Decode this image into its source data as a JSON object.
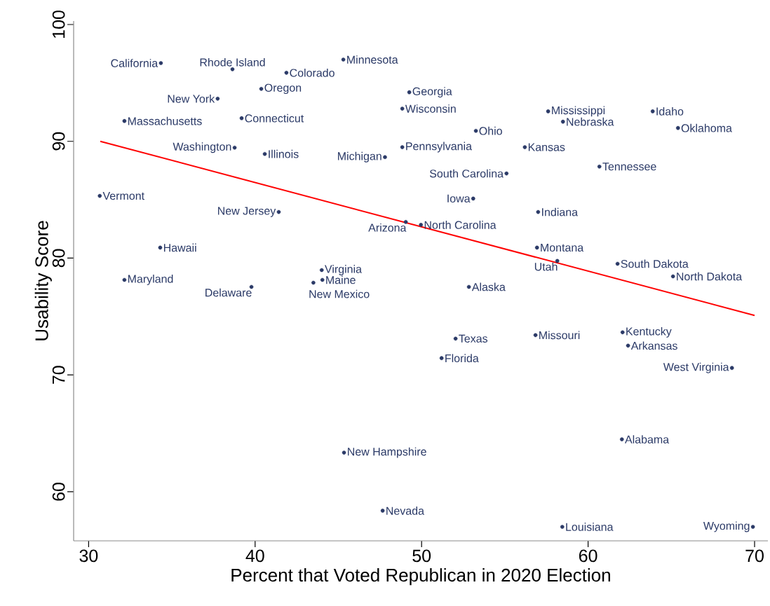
{
  "chart_data": {
    "type": "scatter",
    "xlabel": "Percent that Voted Republican in 2020 Election",
    "ylabel": "Usability Score",
    "xlim": [
      29.1,
      70.8
    ],
    "ylim": [
      55.8,
      100.3
    ],
    "xticks": [
      30,
      40,
      50,
      60,
      70
    ],
    "yticks": [
      60,
      70,
      80,
      90,
      100
    ],
    "grid": false,
    "marker": "circle",
    "series": [
      {
        "color": "#2b3a67",
        "x": [
          34.34,
          38.64,
          41.88,
          40.37,
          37.75,
          32.15,
          39.19,
          38.77,
          40.58,
          30.67,
          41.42,
          34.3,
          32.15,
          39.78,
          45.3,
          49.26,
          48.84,
          53.26,
          48.84,
          56.2,
          47.8,
          55.1,
          53.1,
          49.05,
          49.96,
          44.0,
          44.04,
          43.5,
          52.84,
          57.6,
          63.88,
          58.49,
          65.4,
          60.68,
          57.0,
          56.93,
          58.15,
          61.77,
          65.1,
          56.84,
          62.07,
          62.4,
          68.64,
          62.03,
          58.45,
          69.9,
          52.04,
          51.2,
          45.34,
          47.66
        ],
        "values": [
          96.7,
          96.17,
          95.87,
          94.49,
          93.65,
          91.74,
          91.98,
          89.46,
          88.92,
          85.33,
          83.95,
          80.9,
          78.14,
          77.54,
          97.0,
          94.2,
          92.8,
          90.9,
          89.5,
          89.5,
          88.65,
          87.25,
          85.1,
          83.1,
          82.85,
          78.98,
          78.14,
          77.9,
          77.54,
          92.57,
          92.57,
          91.68,
          91.14,
          87.84,
          83.95,
          80.9,
          79.76,
          79.52,
          78.44,
          73.41,
          73.65,
          72.51,
          70.6,
          64.49,
          57.0,
          57.0,
          73.11,
          71.44,
          63.35,
          58.38
        ]
      },
      {
        "type": "line",
        "color": "#ff0000",
        "line_style": "solid",
        "marker": "none",
        "x": [
          30.7,
          70.0
        ],
        "values": [
          90.0,
          75.1
        ]
      }
    ],
    "annotations": [
      {
        "text": "California",
        "x": 34.34,
        "y": 96.7
      },
      {
        "text": "Rhode Island",
        "x": 38.64,
        "y": 96.17
      },
      {
        "text": "Colorado",
        "x": 41.88,
        "y": 95.87
      },
      {
        "text": "Oregon",
        "x": 40.37,
        "y": 94.49
      },
      {
        "text": "New York",
        "x": 37.75,
        "y": 93.65
      },
      {
        "text": "Massachusetts",
        "x": 32.15,
        "y": 91.74
      },
      {
        "text": "Connecticut",
        "x": 39.19,
        "y": 91.98
      },
      {
        "text": "Washington",
        "x": 38.77,
        "y": 89.46
      },
      {
        "text": "Illinois",
        "x": 40.58,
        "y": 88.92
      },
      {
        "text": "Vermont",
        "x": 30.67,
        "y": 85.33
      },
      {
        "text": "New Jersey",
        "x": 41.42,
        "y": 83.95
      },
      {
        "text": "Hawaii",
        "x": 34.3,
        "y": 80.9
      },
      {
        "text": "Maryland",
        "x": 32.15,
        "y": 78.14
      },
      {
        "text": "Delaware",
        "x": 39.78,
        "y": 77.54
      },
      {
        "text": "Minnesota",
        "x": 45.3,
        "y": 97.0
      },
      {
        "text": "Georgia",
        "x": 49.26,
        "y": 94.2
      },
      {
        "text": "Wisconsin",
        "x": 48.84,
        "y": 92.8
      },
      {
        "text": "Ohio",
        "x": 53.26,
        "y": 90.9
      },
      {
        "text": "Pennsylvania",
        "x": 48.84,
        "y": 89.5
      },
      {
        "text": "Kansas",
        "x": 56.2,
        "y": 89.5
      },
      {
        "text": "Michigan",
        "x": 47.8,
        "y": 88.65
      },
      {
        "text": "South Carolina",
        "x": 55.1,
        "y": 87.25
      },
      {
        "text": "Iowa",
        "x": 53.1,
        "y": 85.1
      },
      {
        "text": "Arizona",
        "x": 49.05,
        "y": 83.1
      },
      {
        "text": "North Carolina",
        "x": 49.96,
        "y": 82.85
      },
      {
        "text": "Virginia",
        "x": 44.0,
        "y": 78.98
      },
      {
        "text": "Maine",
        "x": 44.04,
        "y": 78.14
      },
      {
        "text": "New Mexico",
        "x": 43.5,
        "y": 77.9
      },
      {
        "text": "Alaska",
        "x": 52.84,
        "y": 77.54
      },
      {
        "text": "Mississippi",
        "x": 57.6,
        "y": 92.57
      },
      {
        "text": "Idaho",
        "x": 63.88,
        "y": 92.57
      },
      {
        "text": "Nebraska",
        "x": 58.49,
        "y": 91.68
      },
      {
        "text": "Oklahoma",
        "x": 65.4,
        "y": 91.14
      },
      {
        "text": "Tennessee",
        "x": 60.68,
        "y": 87.84
      },
      {
        "text": "Indiana",
        "x": 57.0,
        "y": 83.95
      },
      {
        "text": "Montana",
        "x": 56.93,
        "y": 80.9
      },
      {
        "text": "Utah",
        "x": 58.15,
        "y": 79.76
      },
      {
        "text": "South Dakota",
        "x": 61.77,
        "y": 79.52
      },
      {
        "text": "North Dakota",
        "x": 65.1,
        "y": 78.44
      },
      {
        "text": "Missouri",
        "x": 56.84,
        "y": 73.41
      },
      {
        "text": "Kentucky",
        "x": 62.07,
        "y": 73.65
      },
      {
        "text": "Arkansas",
        "x": 62.4,
        "y": 72.51
      },
      {
        "text": "West Virginia",
        "x": 68.64,
        "y": 70.6
      },
      {
        "text": "Alabama",
        "x": 62.03,
        "y": 64.49
      },
      {
        "text": "Louisiana",
        "x": 58.45,
        "y": 57.0
      },
      {
        "text": "Wyoming",
        "x": 69.9,
        "y": 57.0
      },
      {
        "text": "Texas",
        "x": 52.04,
        "y": 73.11
      },
      {
        "text": "Florida",
        "x": 51.2,
        "y": 71.44
      },
      {
        "text": "New Hampshire",
        "x": 45.34,
        "y": 63.35
      },
      {
        "text": "Nevada",
        "x": 47.66,
        "y": 58.38
      }
    ]
  }
}
